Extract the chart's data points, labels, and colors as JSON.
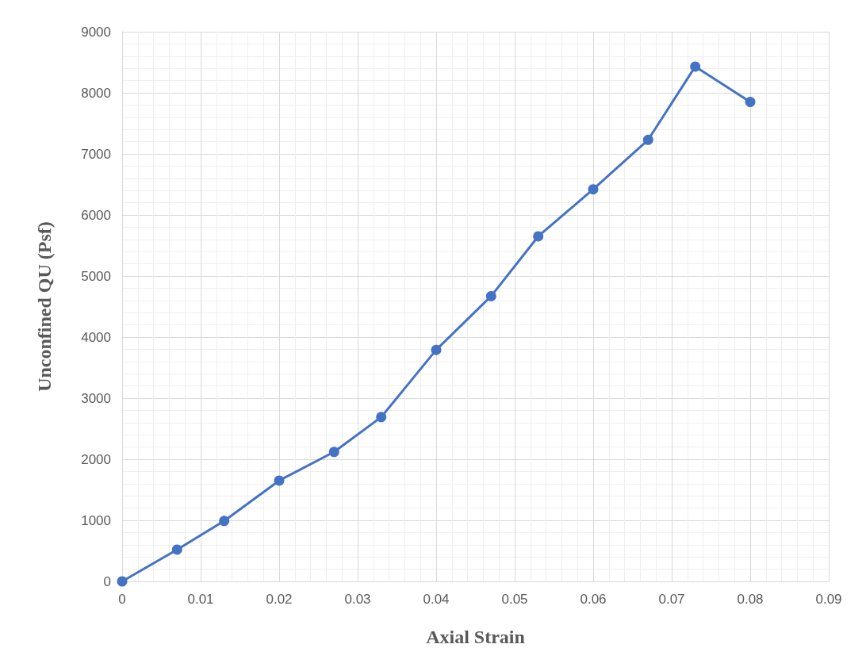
{
  "chart_data": {
    "type": "line",
    "xlabel": "Axial Strain",
    "ylabel": "Unconfined QU (Psf)",
    "x": [
      0,
      0.007,
      0.013,
      0.02,
      0.027,
      0.033,
      0.04,
      0.047,
      0.053,
      0.06,
      0.067,
      0.073,
      0.08
    ],
    "series": [
      {
        "color": "#4472c4",
        "values": [
          0,
          520,
          990,
          1650,
          2120,
          2690,
          3790,
          4670,
          5650,
          6420,
          7230,
          8430,
          7850
        ]
      }
    ],
    "xlim": [
      0,
      0.09
    ],
    "xticks": [
      0,
      0.01,
      0.02,
      0.03,
      0.04,
      0.05,
      0.06,
      0.07,
      0.08,
      0.09
    ],
    "ylim": [
      0,
      9000
    ],
    "yticks": [
      0,
      1000,
      2000,
      3000,
      4000,
      5000,
      6000,
      7000,
      8000,
      9000
    ],
    "grid": true,
    "marker": "circle",
    "line_style": "solid"
  }
}
